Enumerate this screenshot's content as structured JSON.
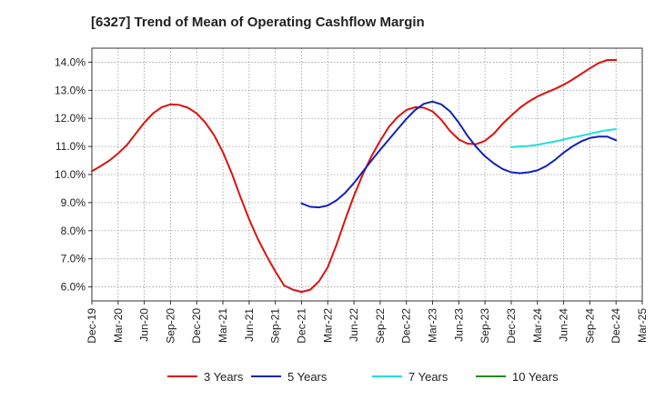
{
  "chart_data": {
    "type": "line",
    "title": "[6327]  Trend of Mean of Operating Cashflow Margin",
    "xlabel": "",
    "ylabel": "",
    "x_ticks": [
      "Dec-19",
      "Mar-20",
      "Jun-20",
      "Sep-20",
      "Dec-20",
      "Mar-21",
      "Jun-21",
      "Sep-21",
      "Dec-21",
      "Mar-22",
      "Jun-22",
      "Sep-22",
      "Dec-22",
      "Mar-23",
      "Jun-23",
      "Sep-23",
      "Dec-23",
      "Mar-24",
      "Jun-24",
      "Sep-24",
      "Dec-24",
      "Mar-25"
    ],
    "y_ticks": [
      "6.0%",
      "7.0%",
      "8.0%",
      "9.0%",
      "10.0%",
      "11.0%",
      "12.0%",
      "13.0%",
      "14.0%"
    ],
    "ylim": [
      5.5,
      14.5
    ],
    "grid": true,
    "legend_position": "bottom",
    "series": [
      {
        "name": "3 Years",
        "color": "#dd1111",
        "x": [
          "Dec-19",
          "Jan-20",
          "Feb-20",
          "Mar-20",
          "Apr-20",
          "May-20",
          "Jun-20",
          "Jul-20",
          "Aug-20",
          "Sep-20",
          "Oct-20",
          "Nov-20",
          "Dec-20",
          "Jan-21",
          "Feb-21",
          "Mar-21",
          "Apr-21",
          "May-21",
          "Jun-21",
          "Jul-21",
          "Aug-21",
          "Sep-21",
          "Oct-21",
          "Nov-21",
          "Dec-21",
          "Jan-22",
          "Feb-22",
          "Mar-22",
          "Apr-22",
          "May-22",
          "Jun-22",
          "Jul-22",
          "Aug-22",
          "Sep-22",
          "Oct-22",
          "Nov-22",
          "Dec-22",
          "Jan-23",
          "Feb-23",
          "Mar-23",
          "Apr-23",
          "May-23",
          "Jun-23",
          "Jul-23",
          "Aug-23",
          "Sep-23",
          "Oct-23",
          "Nov-23",
          "Dec-23",
          "Jan-24",
          "Feb-24",
          "Mar-24",
          "Apr-24",
          "May-24",
          "Jun-24",
          "Jul-24",
          "Aug-24",
          "Sep-24",
          "Oct-24",
          "Nov-24",
          "Dec-24"
        ],
        "values": [
          10.12,
          10.3,
          10.5,
          10.75,
          11.05,
          11.45,
          11.85,
          12.18,
          12.4,
          12.5,
          12.48,
          12.38,
          12.18,
          11.85,
          11.4,
          10.8,
          10.05,
          9.2,
          8.4,
          7.7,
          7.1,
          6.55,
          6.05,
          5.9,
          5.82,
          5.9,
          6.2,
          6.7,
          7.5,
          8.4,
          9.25,
          10.0,
          10.65,
          11.2,
          11.7,
          12.05,
          12.3,
          12.4,
          12.38,
          12.25,
          11.95,
          11.55,
          11.25,
          11.1,
          11.08,
          11.2,
          11.45,
          11.8,
          12.1,
          12.38,
          12.6,
          12.78,
          12.92,
          13.05,
          13.2,
          13.38,
          13.58,
          13.78,
          13.97,
          14.08,
          14.08
        ],
        "value_start_index": 0
      },
      {
        "name": "5 Years",
        "color": "#1122bb",
        "x": [
          "Dec-21",
          "Jan-22",
          "Feb-22",
          "Mar-22",
          "Apr-22",
          "May-22",
          "Jun-22",
          "Jul-22",
          "Aug-22",
          "Sep-22",
          "Oct-22",
          "Nov-22",
          "Dec-22",
          "Jan-23",
          "Feb-23",
          "Mar-23",
          "Apr-23",
          "May-23",
          "Jun-23",
          "Jul-23",
          "Aug-23",
          "Sep-23",
          "Oct-23",
          "Nov-23",
          "Dec-23",
          "Jan-24",
          "Feb-24",
          "Mar-24",
          "Apr-24",
          "May-24",
          "Jun-24",
          "Jul-24",
          "Aug-24",
          "Sep-24",
          "Oct-24",
          "Nov-24",
          "Dec-24"
        ],
        "values": [
          8.97,
          8.85,
          8.83,
          8.9,
          9.08,
          9.35,
          9.7,
          10.1,
          10.5,
          10.88,
          11.25,
          11.62,
          11.98,
          12.3,
          12.52,
          12.6,
          12.5,
          12.25,
          11.85,
          11.38,
          10.98,
          10.65,
          10.4,
          10.2,
          10.08,
          10.05,
          10.08,
          10.15,
          10.3,
          10.52,
          10.78,
          11.0,
          11.18,
          11.3,
          11.35,
          11.35,
          11.22
        ],
        "value_start_index": 24
      },
      {
        "name": "7 Years",
        "color": "#22dddd",
        "x": [
          "Dec-23",
          "Jan-24",
          "Feb-24",
          "Mar-24",
          "Apr-24",
          "May-24",
          "Jun-24",
          "Jul-24",
          "Aug-24",
          "Sep-24",
          "Oct-24",
          "Nov-24",
          "Dec-24"
        ],
        "values": [
          10.98,
          11.0,
          11.02,
          11.06,
          11.12,
          11.18,
          11.25,
          11.32,
          11.38,
          11.45,
          11.52,
          11.58,
          11.62
        ],
        "value_start_index": 48
      },
      {
        "name": "10 Years",
        "color": "#228822",
        "x": [],
        "values": [],
        "value_start_index": 0
      }
    ]
  }
}
